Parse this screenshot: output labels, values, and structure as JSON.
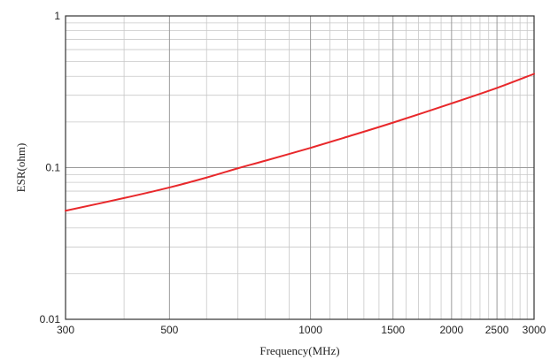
{
  "chart_data": {
    "type": "line",
    "title": "",
    "xlabel": "Frequency(MHz)",
    "ylabel": "ESR(ohm)",
    "x_scale": "log",
    "y_scale": "log",
    "xlim": [
      300,
      3000
    ],
    "ylim": [
      0.01,
      1
    ],
    "grid": true,
    "x_tick_labels": [
      {
        "value": 300,
        "label": "300"
      },
      {
        "value": 500,
        "label": "500"
      },
      {
        "value": 1000,
        "label": "1000"
      },
      {
        "value": 1500,
        "label": "1500"
      },
      {
        "value": 2000,
        "label": "2000"
      },
      {
        "value": 2500,
        "label": "2500"
      },
      {
        "value": 3000,
        "label": "3000"
      }
    ],
    "y_tick_labels": [
      {
        "value": 0.01,
        "label": "0.01"
      },
      {
        "value": 0.1,
        "label": "0.1"
      },
      {
        "value": 1,
        "label": "1"
      }
    ],
    "series": [
      {
        "color": "#e8282b",
        "x": [
          300,
          400,
          500,
          600,
          700,
          800,
          1000,
          1200,
          1500,
          2000,
          2500,
          3000
        ],
        "y": [
          0.052,
          0.063,
          0.074,
          0.086,
          0.099,
          0.111,
          0.135,
          0.16,
          0.198,
          0.265,
          0.335,
          0.415
        ]
      }
    ]
  }
}
